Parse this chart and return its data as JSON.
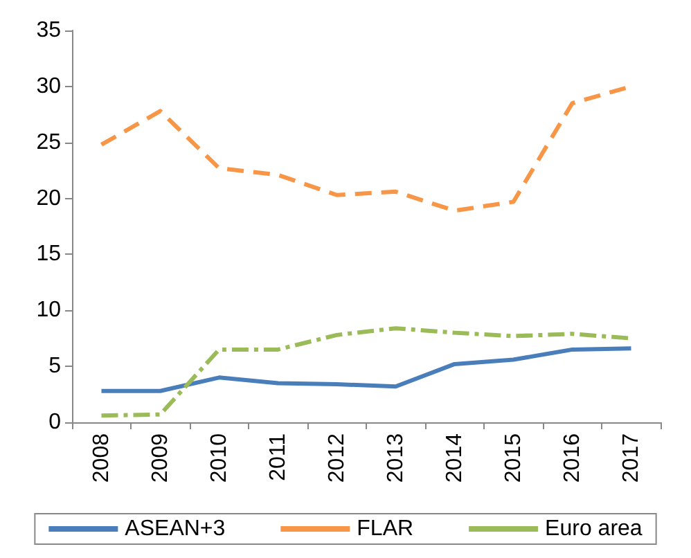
{
  "chart_data": {
    "type": "line",
    "categories": [
      "2008",
      "2009",
      "2010",
      "2011",
      "2012",
      "2013",
      "2014",
      "2015",
      "2016",
      "2017"
    ],
    "series": [
      {
        "name": "ASEAN+3",
        "color": "#4a7ebb",
        "line_style": "solid",
        "values": [
          2.8,
          2.8,
          4.0,
          3.5,
          3.4,
          3.2,
          5.2,
          5.6,
          6.5,
          6.6
        ]
      },
      {
        "name": "FLAR",
        "color": "#f79646",
        "line_style": "dashed",
        "values": [
          24.8,
          27.8,
          22.7,
          22.1,
          20.3,
          20.6,
          18.9,
          19.7,
          28.5,
          30.0
        ]
      },
      {
        "name": "Euro area",
        "color": "#9bbb59",
        "line_style": "dashdot",
        "values": [
          0.6,
          0.7,
          6.5,
          6.5,
          7.8,
          8.4,
          8.0,
          7.7,
          7.9,
          7.5
        ]
      }
    ],
    "ylim": [
      0,
      35
    ],
    "yticks": [
      0,
      5,
      10,
      15,
      20,
      25,
      30,
      35
    ],
    "grid": false,
    "legend": "bottom",
    "marker": "none"
  }
}
